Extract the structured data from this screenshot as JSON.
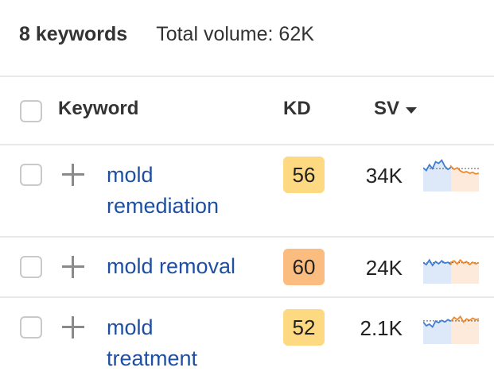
{
  "summary": {
    "count": "8 keywords",
    "total_volume": "Total volume: 62K"
  },
  "table": {
    "headers": {
      "keyword": "Keyword",
      "kd": "KD",
      "sv": "SV"
    },
    "rows": [
      {
        "keyword_line1": "mold",
        "keyword_line2": "remediation",
        "kd": "56",
        "kd_color": "#fdd982",
        "sv": "34K",
        "trend_blue": [
          0.62,
          0.55,
          0.7,
          0.6,
          0.78,
          0.74,
          0.82,
          0.66,
          0.58,
          0.64
        ],
        "trend_orange": [
          0.66,
          0.58,
          0.62,
          0.54,
          0.5,
          0.52,
          0.48,
          0.5,
          0.46,
          0.48
        ]
      },
      {
        "keyword_line1": "mold removal",
        "keyword_line2": "",
        "kd": "60",
        "kd_color": "#fbbd7f",
        "sv": "24K",
        "trend_blue": [
          0.55,
          0.5,
          0.62,
          0.48,
          0.58,
          0.52,
          0.6,
          0.54,
          0.56,
          0.5
        ],
        "trend_orange": [
          0.56,
          0.6,
          0.52,
          0.62,
          0.54,
          0.58,
          0.5,
          0.56,
          0.52,
          0.55
        ]
      },
      {
        "keyword_line1": "mold",
        "keyword_line2": "treatment",
        "kd": "52",
        "kd_color": "#fdd982",
        "sv": "2.1K",
        "trend_blue": [
          0.58,
          0.48,
          0.52,
          0.45,
          0.6,
          0.56,
          0.62,
          0.58,
          0.64,
          0.6
        ],
        "trend_orange": [
          0.6,
          0.7,
          0.64,
          0.72,
          0.58,
          0.66,
          0.62,
          0.68,
          0.64,
          0.66
        ]
      }
    ]
  },
  "colors": {
    "link": "#1e4fa0",
    "trend_blue_line": "#3f7fd1",
    "trend_blue_fill": "#dde9f8",
    "trend_orange_line": "#ee8a2d",
    "trend_orange_fill": "#fdeadb"
  }
}
